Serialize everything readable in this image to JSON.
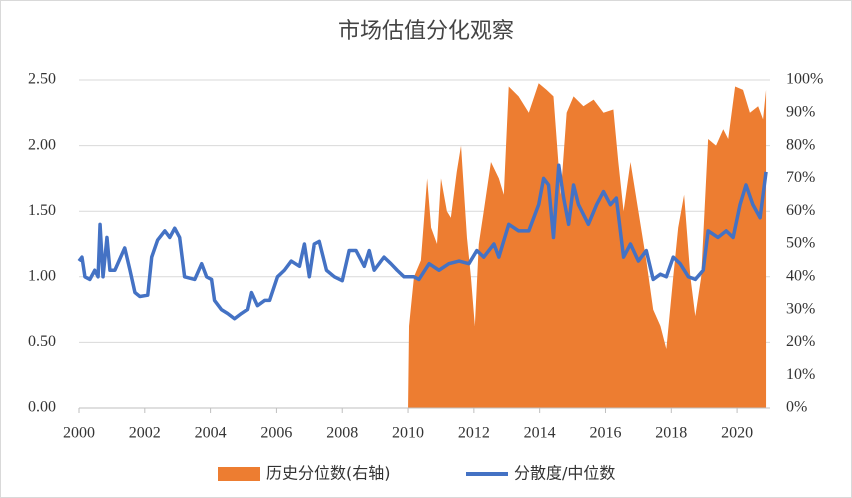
{
  "chart_data": {
    "type": "line-area",
    "title": "市场估值分化观察",
    "xlim": [
      2000,
      2021
    ],
    "xticks": [
      2000,
      2002,
      2004,
      2006,
      2008,
      2010,
      2012,
      2014,
      2016,
      2018,
      2020
    ],
    "ylim": [
      0,
      2.5
    ],
    "yticks": [
      {
        "value": 0,
        "label": "0.00"
      },
      {
        "value": 0.5,
        "label": "0.50"
      },
      {
        "value": 1,
        "label": "1.00"
      },
      {
        "value": 1.5,
        "label": "1.50"
      },
      {
        "value": 2,
        "label": "2.00"
      },
      {
        "value": 2.5,
        "label": "2.50"
      }
    ],
    "y2lim": [
      0,
      100
    ],
    "y2ticks": [
      {
        "value": 0,
        "label": "0%"
      },
      {
        "value": 10,
        "label": "10%"
      },
      {
        "value": 20,
        "label": "20%"
      },
      {
        "value": 30,
        "label": "30%"
      },
      {
        "value": 40,
        "label": "40%"
      },
      {
        "value": 50,
        "label": "50%"
      },
      {
        "value": 60,
        "label": "60%"
      },
      {
        "value": 70,
        "label": "70%"
      },
      {
        "value": 80,
        "label": "80%"
      },
      {
        "value": 90,
        "label": "90%"
      },
      {
        "value": 100,
        "label": "100%"
      }
    ],
    "legend": "bottom",
    "series": [
      {
        "name": "历史分位数(右轴)",
        "type": "area",
        "axis": "y2",
        "color": "#ed7d31",
        "x": [
          2010.0,
          2010.03,
          2010.18,
          2010.39,
          2010.58,
          2010.7,
          2010.88,
          2011.0,
          2011.18,
          2011.3,
          2011.48,
          2011.61,
          2011.79,
          2011.91,
          2012.03,
          2012.15,
          2012.3,
          2012.52,
          2012.76,
          2012.91,
          2013.06,
          2013.36,
          2013.67,
          2013.97,
          2014.21,
          2014.42,
          2014.64,
          2014.82,
          2015.03,
          2015.33,
          2015.64,
          2015.94,
          2016.24,
          2016.39,
          2016.55,
          2016.76,
          2017.0,
          2017.24,
          2017.45,
          2017.67,
          2017.85,
          2018.06,
          2018.21,
          2018.39,
          2018.58,
          2018.73,
          2018.91,
          2019.12,
          2019.36,
          2019.58,
          2019.73,
          2019.94,
          2020.18,
          2020.39,
          2020.64,
          2020.79,
          2020.88
        ],
        "values": [
          0,
          25,
          40,
          45,
          70,
          55,
          50,
          70,
          60,
          58,
          72,
          80,
          52,
          40,
          25,
          50,
          60,
          75,
          70,
          65,
          98,
          95,
          90,
          99,
          97,
          95,
          65,
          90,
          95,
          92,
          94,
          90,
          91,
          75,
          60,
          75,
          60,
          45,
          30,
          25,
          18,
          40,
          55,
          65,
          40,
          28,
          40,
          82,
          80,
          85,
          82,
          98,
          97,
          90,
          92,
          88,
          97
        ]
      },
      {
        "name": "分散度/中位数",
        "type": "line",
        "color": "#4472c4",
        "x": [
          2000.0,
          2000.09,
          2000.18,
          2000.33,
          2000.48,
          2000.58,
          2000.64,
          2000.73,
          2000.85,
          2000.94,
          2001.09,
          2001.39,
          2001.55,
          2001.7,
          2001.85,
          2002.09,
          2002.21,
          2002.39,
          2002.61,
          2002.76,
          2002.91,
          2003.06,
          2003.21,
          2003.52,
          2003.73,
          2003.88,
          2004.03,
          2004.12,
          2004.33,
          2004.52,
          2004.73,
          2004.94,
          2005.12,
          2005.24,
          2005.42,
          2005.64,
          2005.79,
          2006.03,
          2006.24,
          2006.45,
          2006.7,
          2006.85,
          2007.0,
          2007.15,
          2007.3,
          2007.52,
          2007.76,
          2008.0,
          2008.21,
          2008.42,
          2008.67,
          2008.82,
          2008.97,
          2009.27,
          2009.48,
          2009.67,
          2009.88,
          2010.18,
          2010.33,
          2010.64,
          2010.94,
          2011.24,
          2011.55,
          2011.85,
          2012.09,
          2012.3,
          2012.61,
          2012.76,
          2013.06,
          2013.36,
          2013.67,
          2013.97,
          2014.12,
          2014.27,
          2014.42,
          2014.58,
          2014.73,
          2014.88,
          2015.03,
          2015.18,
          2015.48,
          2015.73,
          2015.94,
          2016.15,
          2016.33,
          2016.55,
          2016.76,
          2017.0,
          2017.24,
          2017.45,
          2017.67,
          2017.85,
          2018.06,
          2018.27,
          2018.52,
          2018.73,
          2018.97,
          2019.12,
          2019.42,
          2019.67,
          2019.88,
          2020.09,
          2020.27,
          2020.48,
          2020.7,
          2020.88
        ],
        "values": [
          1.12,
          1.15,
          1.0,
          0.98,
          1.05,
          1.0,
          1.4,
          1.0,
          1.3,
          1.05,
          1.05,
          1.22,
          1.05,
          0.88,
          0.85,
          0.86,
          1.15,
          1.28,
          1.35,
          1.3,
          1.37,
          1.3,
          1.0,
          0.98,
          1.1,
          1.0,
          0.98,
          0.82,
          0.75,
          0.72,
          0.68,
          0.72,
          0.75,
          0.88,
          0.78,
          0.82,
          0.82,
          1.0,
          1.05,
          1.12,
          1.08,
          1.25,
          1.0,
          1.25,
          1.27,
          1.05,
          1.0,
          0.97,
          1.2,
          1.2,
          1.08,
          1.2,
          1.05,
          1.15,
          1.1,
          1.05,
          1.0,
          1.0,
          0.98,
          1.1,
          1.05,
          1.1,
          1.12,
          1.1,
          1.2,
          1.15,
          1.25,
          1.15,
          1.4,
          1.35,
          1.35,
          1.55,
          1.75,
          1.7,
          1.3,
          1.85,
          1.6,
          1.4,
          1.7,
          1.55,
          1.4,
          1.55,
          1.65,
          1.55,
          1.6,
          1.15,
          1.25,
          1.12,
          1.2,
          0.98,
          1.02,
          1.0,
          1.15,
          1.1,
          1.0,
          0.98,
          1.05,
          1.35,
          1.3,
          1.35,
          1.3,
          1.55,
          1.7,
          1.55,
          1.45,
          1.8
        ]
      }
    ]
  }
}
